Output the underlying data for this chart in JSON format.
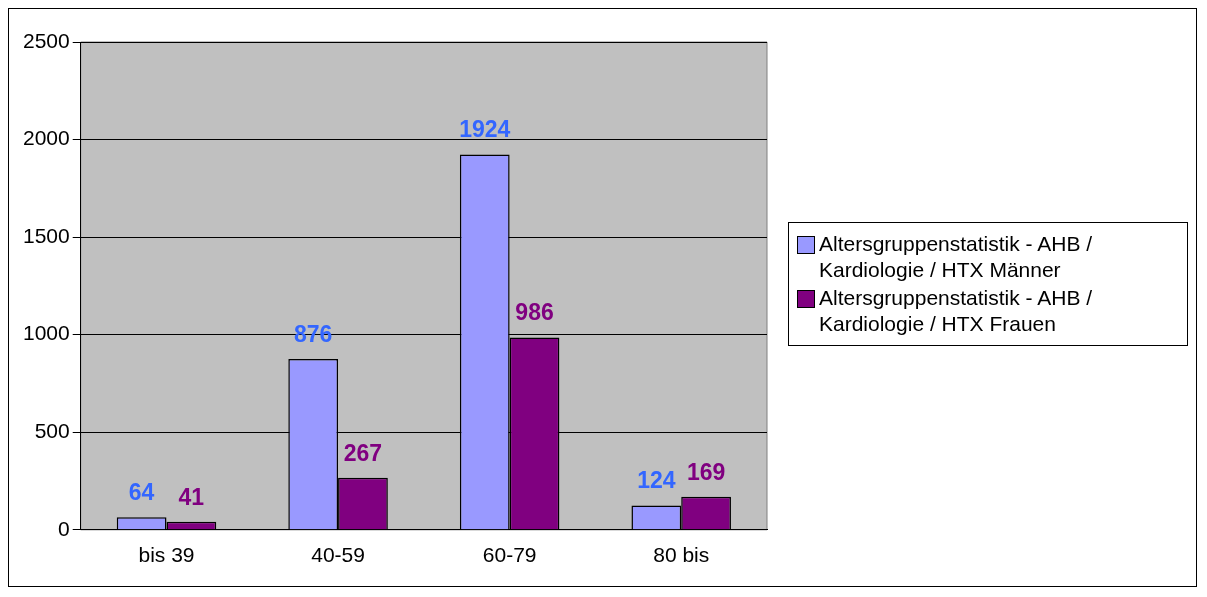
{
  "chart_data": {
    "type": "bar",
    "categories": [
      "bis 39",
      "40-59",
      "60-79",
      "80 bis"
    ],
    "series": [
      {
        "name": "Altersgruppenstatistik - AHB / Kardiologie / HTX Männer",
        "color": "#9999ff",
        "values": [
          64,
          876,
          1924,
          124
        ]
      },
      {
        "name": "Altersgruppenstatistik - AHB / Kardiologie / HTX Frauen",
        "color": "#800080",
        "values": [
          41,
          267,
          986,
          169
        ]
      }
    ],
    "ylim": [
      0,
      2500
    ],
    "yticks": [
      0,
      500,
      1000,
      1500,
      2000,
      2500
    ],
    "grid": "y",
    "legend": "right",
    "data_labels": true
  }
}
